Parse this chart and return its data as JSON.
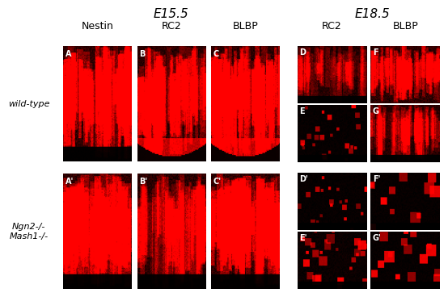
{
  "title_left": "E15.5",
  "title_right": "E18.5",
  "col_labels_left": [
    "Nestin",
    "RC2",
    "BLBP"
  ],
  "col_labels_right": [
    "RC2",
    "BLBP"
  ],
  "row_label_top": "wild-type",
  "row_label_bottom": "Ngn2-/-\nMash1-/-",
  "bg_color": "#ffffff",
  "panel_bg": "#000000",
  "label_color": "#ffffff",
  "text_color": "#000000",
  "title_fontsize": 11,
  "col_label_fontsize": 9,
  "row_label_fontsize": 8,
  "panel_label_fontsize": 7
}
